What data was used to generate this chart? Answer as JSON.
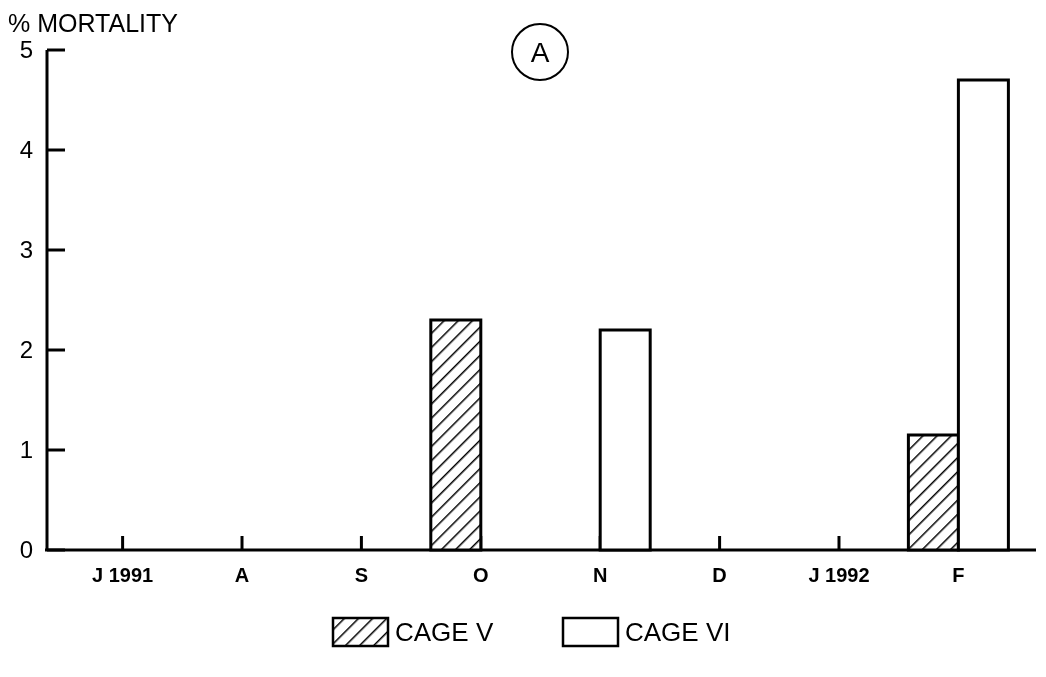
{
  "chart_data": {
    "type": "bar",
    "title": "A",
    "ylabel": "% MORTALITY",
    "categories": [
      "J 1991",
      "A",
      "S",
      "O",
      "N",
      "D",
      "J 1992",
      "F"
    ],
    "series": [
      {
        "name": "CAGE V",
        "color": "#000000",
        "values": [
          0,
          0,
          0,
          2.3,
          0,
          0,
          0,
          1.15
        ]
      },
      {
        "name": "CAGE VI",
        "color": "#ffffff",
        "values": [
          0,
          0,
          0,
          0,
          2.2,
          0,
          0,
          4.7
        ]
      }
    ],
    "ylim": [
      0,
      5
    ],
    "yticks": [
      0,
      1,
      2,
      3,
      4,
      5
    ],
    "legend": "bottom"
  }
}
